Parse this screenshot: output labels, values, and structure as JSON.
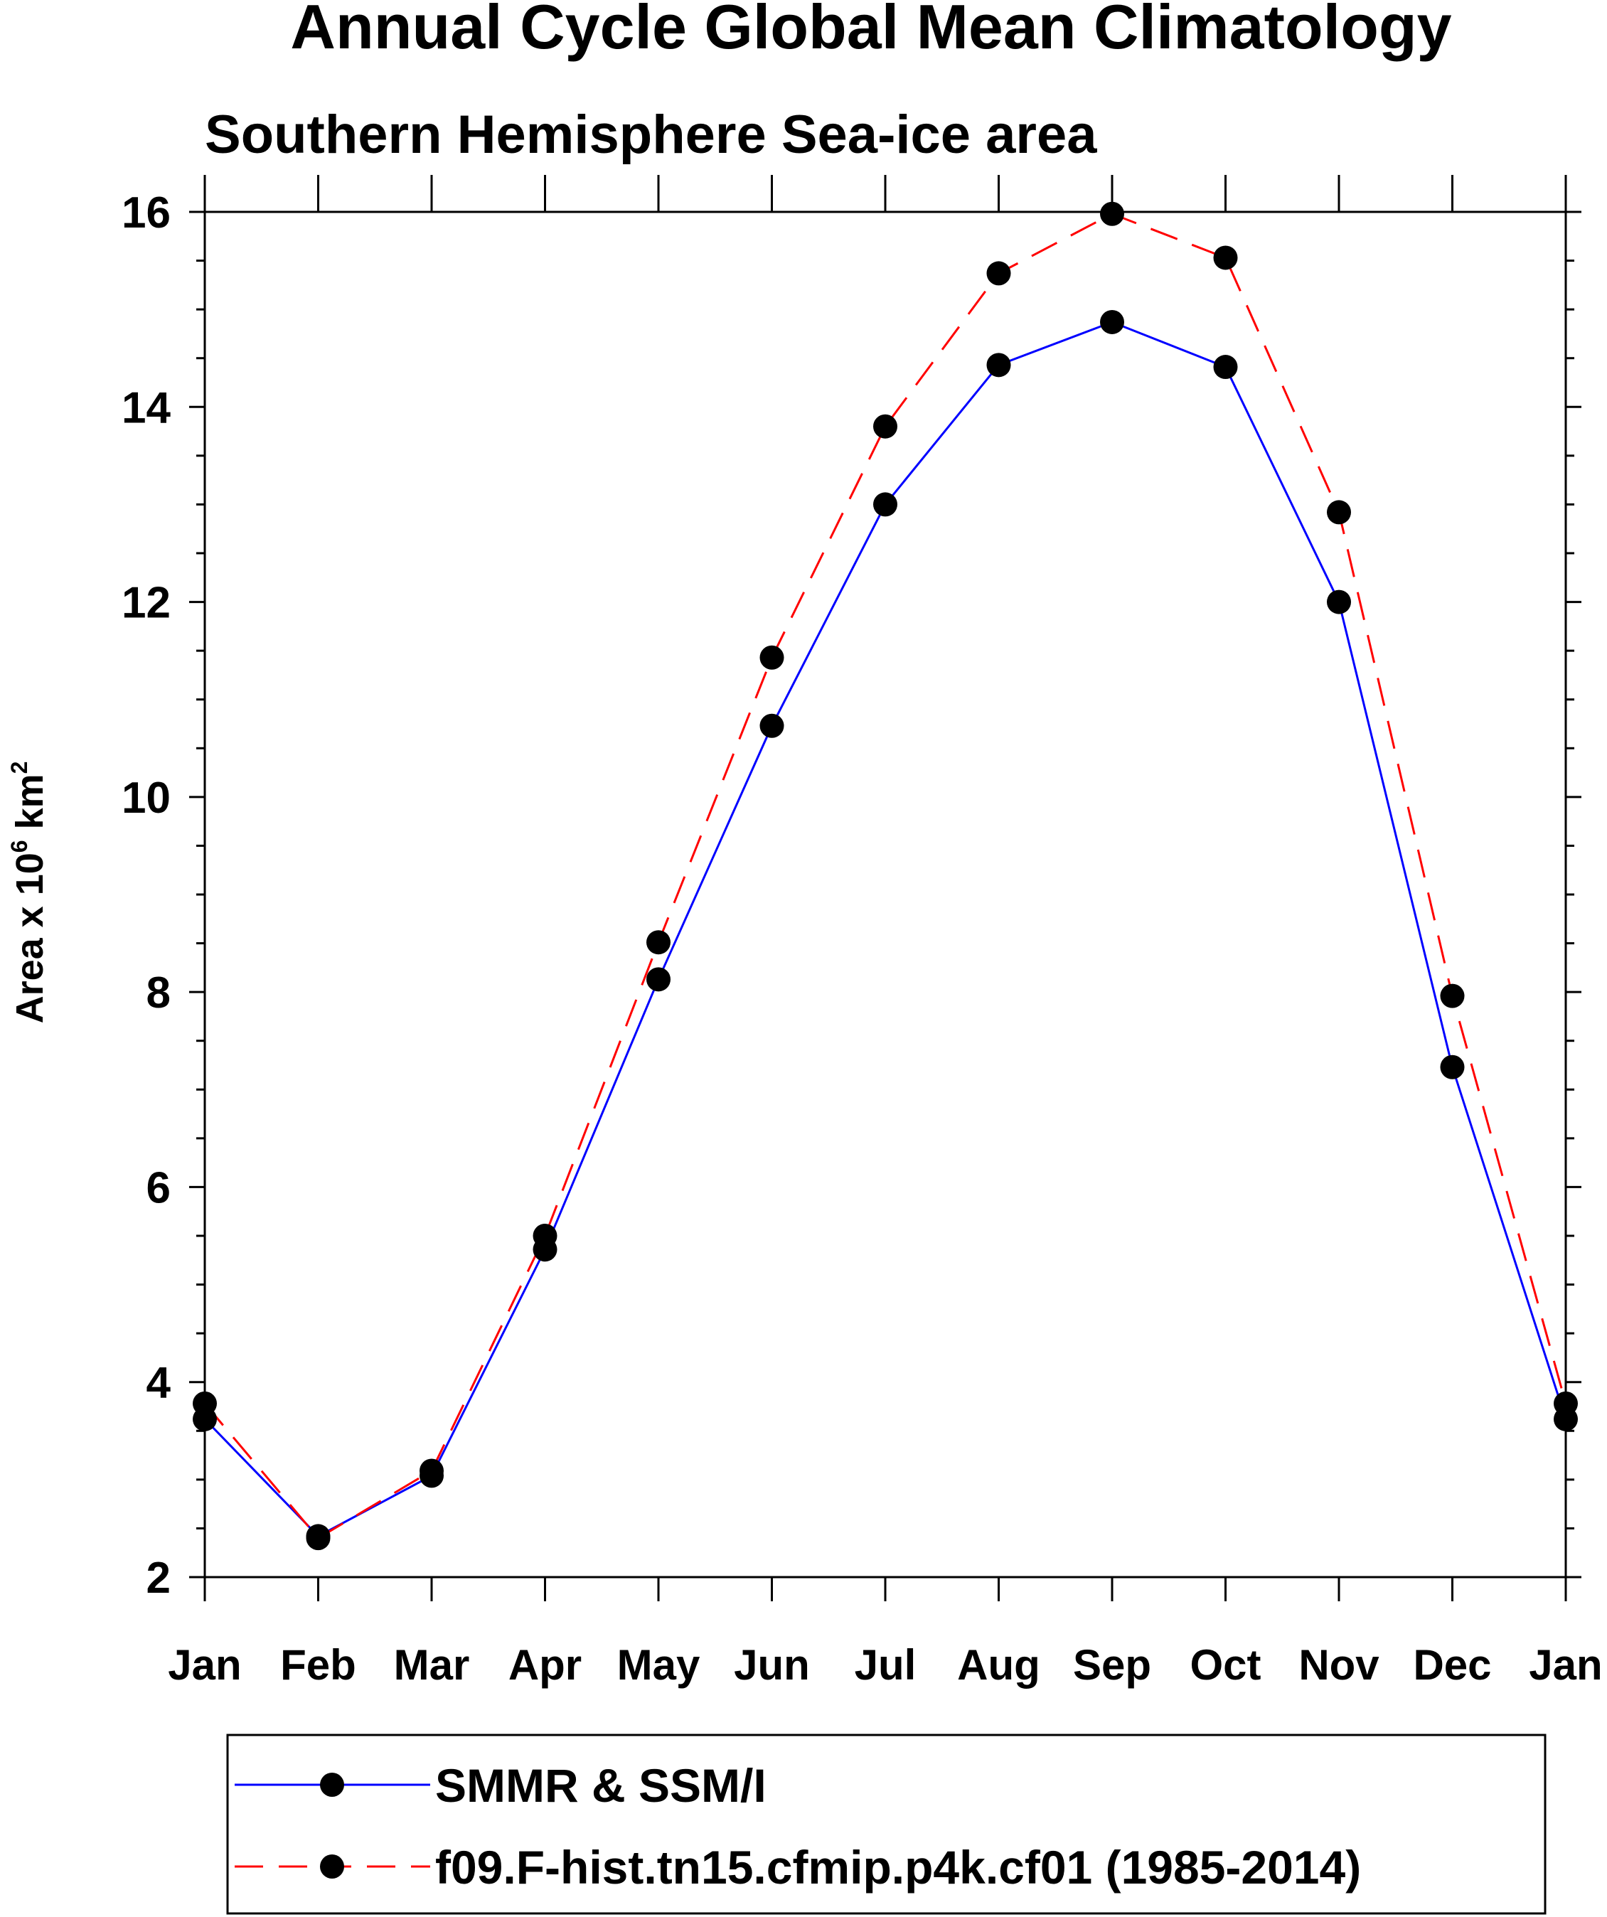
{
  "chart_data": {
    "type": "line",
    "title": "Annual Cycle Global Mean Climatology",
    "subtitle": "Southern Hemisphere Sea-ice area",
    "ylabel": "Area x 10",
    "ylabel_exponent": "6",
    "ylabel_unit": "km",
    "ylabel_unit_exponent": "2",
    "xlabel": "",
    "categories": [
      "Jan",
      "Feb",
      "Mar",
      "Apr",
      "May",
      "Jun",
      "Jul",
      "Aug",
      "Sep",
      "Oct",
      "Nov",
      "Dec",
      "Jan"
    ],
    "ylim": [
      2,
      16
    ],
    "yticks": [
      2,
      4,
      6,
      8,
      10,
      12,
      14,
      16
    ],
    "legend_position": "bottom",
    "series": [
      {
        "name": "SMMR & SSM/I",
        "color": "#0000ff",
        "dash": "solid",
        "values": [
          3.62,
          2.42,
          3.04,
          5.36,
          8.13,
          10.73,
          13.0,
          14.43,
          14.87,
          14.41,
          12.0,
          7.23,
          3.62
        ]
      },
      {
        "name": "f09.F-hist.tn15.cfmip.p4k.cf01 (1985-2014)",
        "color": "#ff0000",
        "dash": "dashed",
        "values": [
          3.78,
          2.4,
          3.09,
          5.5,
          8.51,
          11.43,
          13.8,
          15.37,
          15.98,
          15.53,
          12.92,
          7.96,
          3.78
        ]
      }
    ]
  }
}
